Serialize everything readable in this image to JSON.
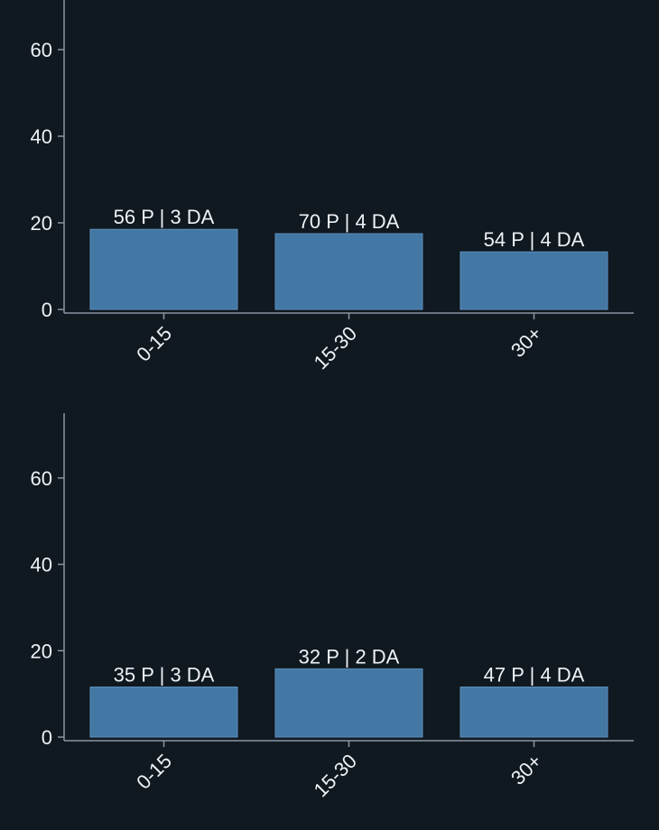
{
  "colors": {
    "background": "#101820",
    "bar_fill": "#4377a4",
    "bar_edge": "#5d8fbc",
    "axis": "#8a96a3",
    "text": "#eef2f6"
  },
  "chart_data": [
    {
      "type": "bar",
      "title": "",
      "xlabel": "",
      "ylabel": "",
      "categories": [
        "0-15",
        "15-30",
        "30+"
      ],
      "values": [
        18.5,
        17.5,
        13.3
      ],
      "bar_labels": [
        "56 P | 3 DA",
        "70 P | 4 DA",
        "54 P | 4 DA"
      ],
      "ylim": [
        0,
        75
      ],
      "yticks": [
        0,
        20,
        40,
        60
      ],
      "grid": false,
      "legend": "none"
    },
    {
      "type": "bar",
      "title": "",
      "xlabel": "",
      "ylabel": "",
      "categories": [
        "0-15",
        "15-30",
        "30+"
      ],
      "values": [
        11.6,
        15.8,
        11.6
      ],
      "bar_labels": [
        "35 P | 3 DA",
        "32 P | 2 DA",
        "47 P | 4 DA"
      ],
      "ylim": [
        0,
        75
      ],
      "yticks": [
        0,
        20,
        40,
        60
      ],
      "grid": false,
      "legend": "none"
    }
  ]
}
